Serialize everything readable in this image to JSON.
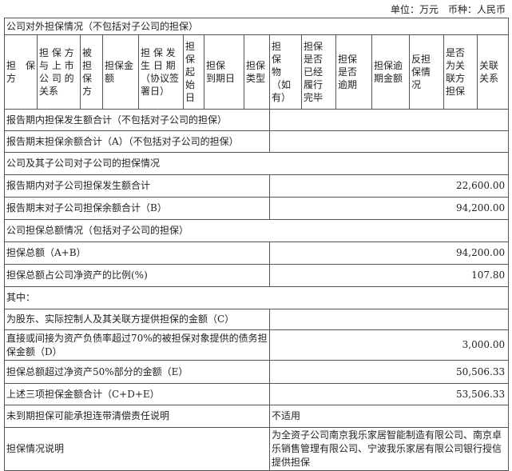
{
  "unit_label": "单位：万元　币种：人民币",
  "section1_title": "公司对外担保情况（不包括对子公司的担保）",
  "headers": [
    "担　保\n方",
    "担 保 方\n与 上 市\n公 司 的\n关系",
    "被担\n保方",
    "担保金\n额",
    "担 保 发\n生 日 期\n（协议签\n署日）",
    "担\n保\n起\n始\n日",
    "担保\n到期日",
    "担保\n类型",
    "担　保\n物（如\n有）",
    "担保\n是否\n已经\n履行\n完毕",
    "担保\n是否\n逾期",
    "担保逾\n期金额",
    "反担\n保情\n况",
    "是否\n为关\n联方\n担保",
    "关联\n关系"
  ],
  "rows": [
    {
      "label": "报告期内担保发生额合计（不包括对子公司的担保）",
      "value": ""
    },
    {
      "label": "报告期末担保余额合计（A）（不包括对子公司的担保）",
      "value": ""
    },
    {
      "section": "公司及其子公司对子公司的担保情况"
    },
    {
      "label": "报告期内对子公司担保发生额合计",
      "value": "22,600.00"
    },
    {
      "label": "报告期末对子公司担保余额合计（B）",
      "value": "94,200.00"
    },
    {
      "section": "公司担保总额情况（包括对子公司的担保）"
    },
    {
      "label": "担保总额（A+B）",
      "value": "94,200.00"
    },
    {
      "label": "担保总额占公司净资产的比例(%)",
      "value": "107.80"
    },
    {
      "section": "其中："
    },
    {
      "label": "为股东、实际控制人及其关联方提供担保的金额（C）",
      "value": ""
    },
    {
      "label": "直接或间接为资产负债率超过70%的被担保对象提供的债务担保金额（D）",
      "value": "3,000.00"
    },
    {
      "label": "担保总额超过净资产50%部分的金额（E）",
      "value": "50,506.33"
    },
    {
      "label": "上述三项担保金额合计（C+D+E）",
      "value": "53,506.33"
    },
    {
      "label": "未到期担保可能承担连带清偿责任说明",
      "value": "不适用"
    },
    {
      "label": "担保情况说明",
      "value": "为全资子公司南京我乐家居智能制造有限公司、南京卓乐销售管理有限公司、宁波我乐家居有限公司银行授信提供担保"
    }
  ]
}
